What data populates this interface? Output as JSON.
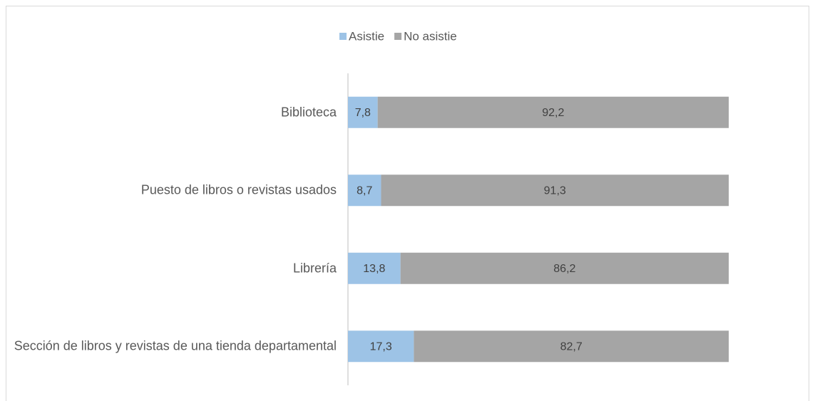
{
  "chart_data": {
    "type": "stacked-bar-horizontal",
    "categories": [
      "Biblioteca",
      "Puesto de libros o revistas usados",
      "Librería",
      "Sección de libros y revistas de una tienda departamental"
    ],
    "series": [
      {
        "name": "Asistie",
        "color": "#9dc3e6",
        "values": [
          7.8,
          8.7,
          13.8,
          17.3
        ],
        "value_labels": [
          "7,8",
          "8,7",
          "13,8",
          "17,3"
        ]
      },
      {
        "name": "No asistie",
        "color": "#a5a5a5",
        "values": [
          92.2,
          91.3,
          86.2,
          82.7
        ],
        "value_labels": [
          "92,2",
          "91,3",
          "86,2",
          "82,7"
        ]
      }
    ],
    "legend": "top"
  }
}
